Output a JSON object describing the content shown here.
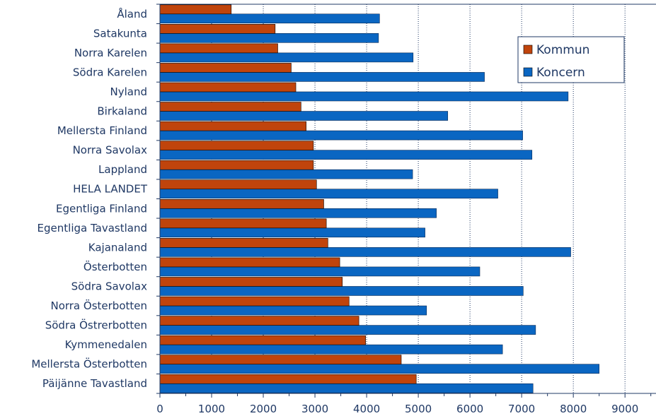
{
  "chart_data": {
    "type": "bar",
    "orientation": "horizontal",
    "categories": [
      "Åland",
      "Satakunta",
      "Norra Karelen",
      "Södra Karelen",
      "Nyland",
      "Birkaland",
      "Mellersta Finland",
      "Norra Savolax",
      "Lappland",
      "HELA LANDET",
      "Egentliga Finland",
      "Egentliga Tavastland",
      "Kajanaland",
      "Österbotten",
      "Södra Savolax",
      "Norra Österbotten",
      "Södra Östrerbotten",
      "Kymmenedalen",
      "Mellersta Österbotten",
      "Päijänne Tavastland"
    ],
    "series": [
      {
        "name": "Kommun",
        "color": "#c0440c",
        "values": [
          1380,
          2230,
          2280,
          2540,
          2630,
          2730,
          2830,
          2970,
          2970,
          3030,
          3170,
          3220,
          3250,
          3480,
          3530,
          3660,
          3850,
          3980,
          4670,
          4960
        ]
      },
      {
        "name": "Koncern",
        "color": "#0a66c2",
        "values": [
          4250,
          4230,
          4900,
          6280,
          7900,
          5570,
          7020,
          7200,
          4890,
          6540,
          5350,
          5130,
          7950,
          6190,
          7030,
          5160,
          7270,
          6630,
          8500,
          7220
        ]
      }
    ],
    "xlim": [
      0,
      9600
    ],
    "xticks": [
      "0",
      "1000",
      "2000",
      "3000",
      "4000",
      "5000",
      "6000",
      "7000",
      "8000",
      "9000"
    ],
    "xtick_values": [
      0,
      1000,
      2000,
      3000,
      4000,
      5000,
      6000,
      7000,
      8000,
      9000
    ],
    "grid": true,
    "legend": {
      "position": "top-right",
      "entries": [
        "Kommun",
        "Koncern"
      ]
    },
    "axis_color": "#1f3864"
  }
}
